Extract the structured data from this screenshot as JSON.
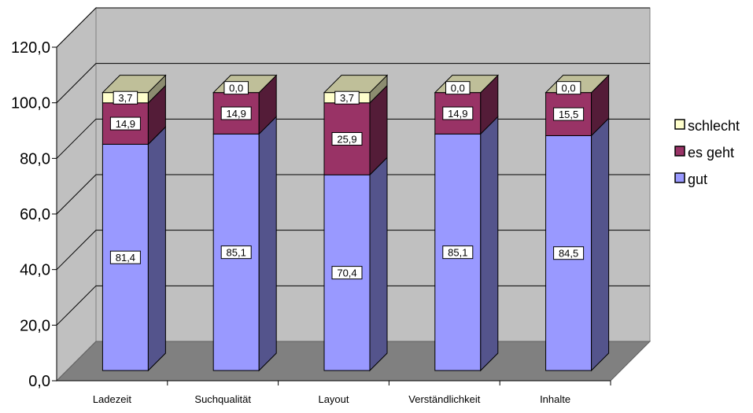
{
  "chart_data": {
    "type": "bar",
    "stacked": true,
    "three_d": true,
    "categories": [
      "Ladezeit",
      "Suchqualität",
      "Layout",
      "Verständlichkeit",
      "Inhalte"
    ],
    "series": [
      {
        "name": "gut",
        "values": [
          81.4,
          85.1,
          70.4,
          85.1,
          84.5
        ],
        "labels": [
          "81,4",
          "85,1",
          "70,4",
          "85,1",
          "84,5"
        ],
        "color": "#9999ff"
      },
      {
        "name": "es geht",
        "values": [
          14.9,
          14.9,
          25.9,
          14.9,
          15.5
        ],
        "labels": [
          "14,9",
          "14,9",
          "25,9",
          "14,9",
          "15,5"
        ],
        "color": "#993366"
      },
      {
        "name": "schlecht",
        "values": [
          3.7,
          0.0,
          3.7,
          0.0,
          0.0
        ],
        "labels": [
          "3,7",
          "0,0",
          "3,7",
          "0,0",
          "0,0"
        ],
        "color": "#ffffcc"
      }
    ],
    "ylim": [
      0,
      120
    ],
    "yticks": [
      0,
      20,
      40,
      60,
      80,
      100,
      120
    ],
    "ytick_labels": [
      "0,0",
      "20,0",
      "40,0",
      "60,0",
      "80,0",
      "100,0",
      "120,0"
    ],
    "grid": true,
    "legend": {
      "position": "right",
      "order": [
        "schlecht",
        "es geht",
        "gut"
      ]
    },
    "title": "",
    "xlabel": "",
    "ylabel": ""
  },
  "colors": {
    "wall": "#c0c0c0",
    "floor": "#808080",
    "grid": "#000000"
  }
}
